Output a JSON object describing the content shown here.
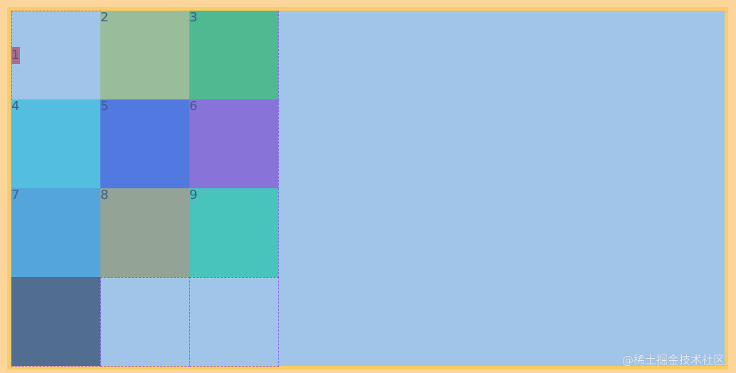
{
  "items": [
    {
      "label": "1",
      "color": "#b06a8e",
      "col": 1,
      "row": 1,
      "small": true
    },
    {
      "label": "2",
      "color": "#99bd9b",
      "col": 2,
      "row": 1
    },
    {
      "label": "3",
      "color": "#4fb991",
      "col": 3,
      "row": 1
    },
    {
      "label": "4",
      "color": "#53bedf",
      "col": 1,
      "row": 2
    },
    {
      "label": "5",
      "color": "#5279df",
      "col": 2,
      "row": 2
    },
    {
      "label": "6",
      "color": "#8874d8",
      "col": 3,
      "row": 2
    },
    {
      "label": "7",
      "color": "#53a5db",
      "col": 1,
      "row": 3
    },
    {
      "label": "8",
      "color": "#93a396",
      "col": 2,
      "row": 3
    },
    {
      "label": "9",
      "color": "#48c4bd",
      "col": 3,
      "row": 3
    },
    {
      "label": "",
      "color": "#516d8f",
      "col": 1,
      "row": 4
    }
  ],
  "watermark": "@稀土掘金技术社区"
}
